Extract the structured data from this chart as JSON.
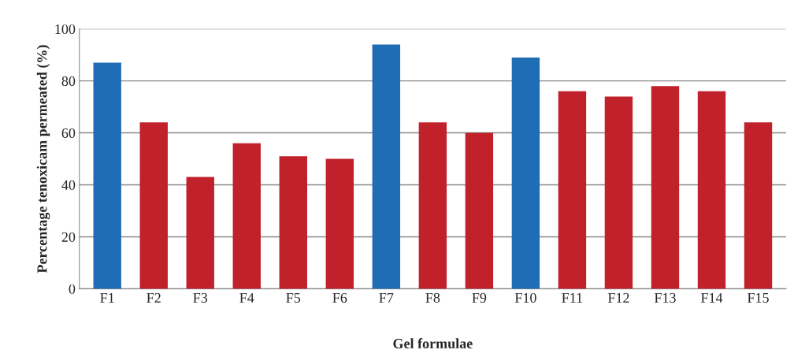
{
  "chart_data": {
    "type": "bar",
    "xlabel": "Gel formulae",
    "ylabel": "Percentage tenoxicam permeated (%)",
    "categories": [
      "F1",
      "F2",
      "F3",
      "F4",
      "F5",
      "F6",
      "F7",
      "F8",
      "F9",
      "F10",
      "F11",
      "F12",
      "F13",
      "F14",
      "F15"
    ],
    "values": [
      87,
      64,
      43,
      56,
      51,
      50,
      94,
      64,
      60,
      89,
      76,
      74,
      78,
      76,
      64
    ],
    "colors": [
      "#1f6db5",
      "#c0212b",
      "#c0212b",
      "#c0212b",
      "#c0212b",
      "#c0212b",
      "#1f6db5",
      "#c0212b",
      "#c0212b",
      "#1f6db5",
      "#c0212b",
      "#c0212b",
      "#c0212b",
      "#c0212b",
      "#c0212b"
    ],
    "ylim": [
      0,
      100
    ],
    "yticks": [
      0,
      20,
      40,
      60,
      80,
      100
    ],
    "grid": "y"
  }
}
